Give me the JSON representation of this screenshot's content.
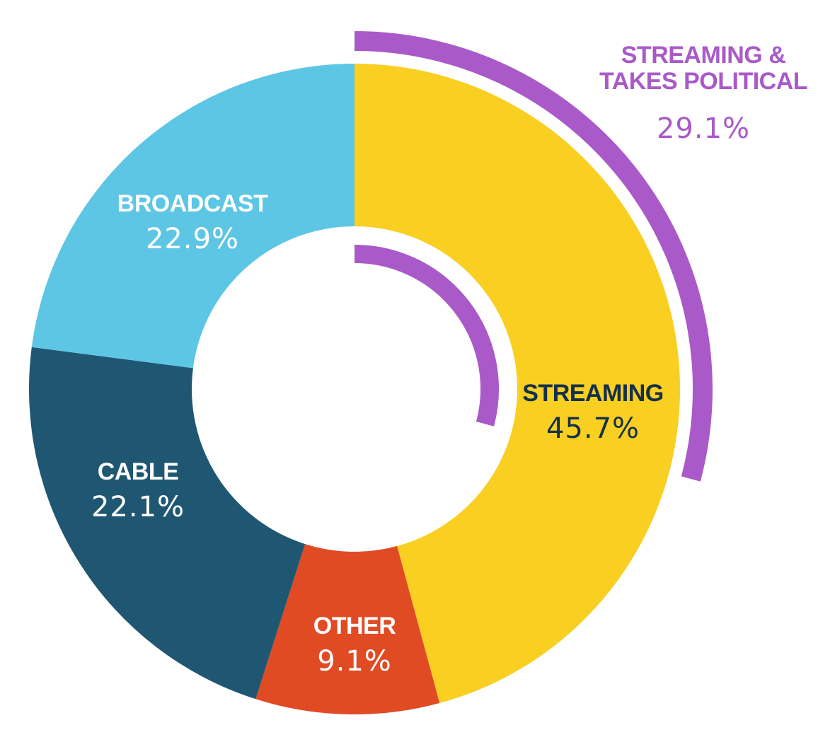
{
  "chart_data": {
    "type": "donut",
    "title": "",
    "slices": [
      {
        "label": "STREAMING",
        "value": 45.7,
        "display": "45.7%",
        "color": "#F9CF22",
        "text_color": "#14304A"
      },
      {
        "label": "OTHER",
        "value": 9.1,
        "display": "9.1%",
        "color": "#E04B24",
        "text_color": "#FFFFFF"
      },
      {
        "label": "CABLE",
        "value": 22.1,
        "display": "22.1%",
        "color": "#1F5773",
        "text_color": "#FFFFFF"
      },
      {
        "label": "BROADCAST",
        "value": 22.9,
        "display": "22.9%",
        "color": "#5DC6E4",
        "text_color": "#FFFFFF"
      }
    ],
    "start": "12 o'clock",
    "direction": "clockwise",
    "subset": {
      "label_lines": [
        "STREAMING &",
        "TAKES POLITICAL"
      ],
      "value": 29.1,
      "display": "29.1%",
      "parent": "STREAMING",
      "color": "#A95AC8"
    }
  }
}
